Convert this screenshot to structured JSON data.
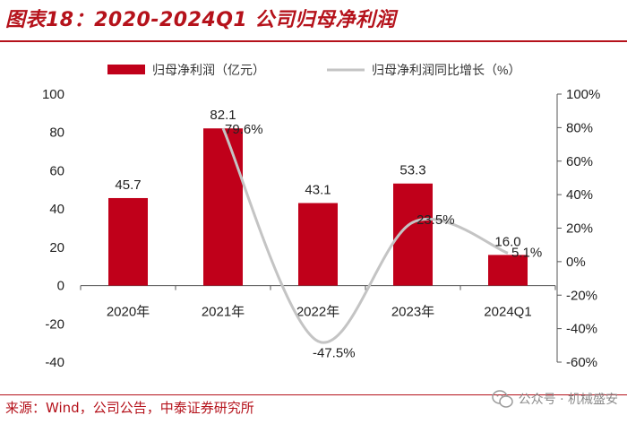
{
  "header": {
    "title": "图表18：2020-2024Q1 公司归母净利润"
  },
  "footer": {
    "source": "来源：Wind，公司公告，中泰证券研究所",
    "watermark": "公众号 · 机械盛安"
  },
  "colors": {
    "bar": "#c0001a",
    "line": "#c4c4c4",
    "brand": "#b5121b"
  },
  "chart_data": {
    "type": "bar",
    "title": "",
    "categories": [
      "2020年",
      "2021年",
      "2022年",
      "2023年",
      "2024Q1"
    ],
    "series": [
      {
        "name": "归母净利润（亿元）",
        "type": "bar",
        "axis": "left",
        "values": [
          45.7,
          82.1,
          43.1,
          53.3,
          16.0
        ],
        "labels": [
          "45.7",
          "82.1",
          "43.1",
          "53.3",
          "16.0"
        ]
      },
      {
        "name": "归母净利润同比增长（%）",
        "type": "line",
        "axis": "right",
        "values": [
          null,
          79.6,
          -47.5,
          23.5,
          5.1
        ],
        "labels": [
          "",
          "79.6%",
          "-47.5%",
          "23.5%",
          "5.1%"
        ]
      }
    ],
    "y_left": {
      "min": -40,
      "max": 100,
      "ticks": [
        -40,
        -20,
        0,
        20,
        40,
        60,
        80,
        100
      ],
      "tick_labels": [
        "-40",
        "-20",
        "0",
        "20",
        "40",
        "60",
        "80",
        "100"
      ]
    },
    "y_right": {
      "min": -60,
      "max": 100,
      "ticks": [
        -60,
        -40,
        -20,
        0,
        20,
        40,
        60,
        80,
        100
      ],
      "tick_labels": [
        "-60%",
        "-40%",
        "-20%",
        "0%",
        "20%",
        "40%",
        "60%",
        "80%",
        "100%"
      ]
    },
    "legend_position": "top",
    "grid": false
  }
}
